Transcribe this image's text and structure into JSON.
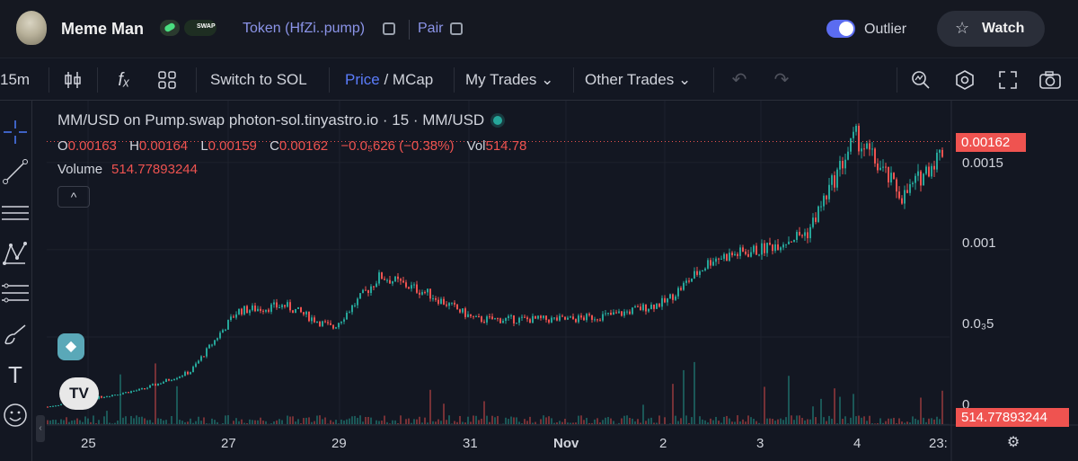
{
  "header": {
    "token_name": "Meme Man",
    "token_link": "Token (HfZi..pump)",
    "pair_link": "Pair",
    "pump_badge": "SWAP",
    "outlier_label": "Outlier",
    "outlier_enabled": true,
    "watch_label": "Watch",
    "accent_color": "#5b6cf0"
  },
  "toolbar": {
    "interval": "15m",
    "switch_label": "Switch to SOL",
    "price_label": "Price",
    "price_sep": " / ",
    "mcap_label": "MCap",
    "my_trades_label": "My Trades",
    "other_trades_label": "Other Trades",
    "icons": [
      "candles-icon",
      "fx-indicators-icon",
      "layouts-grid-icon",
      "undo-icon",
      "redo-icon",
      "magnifier-icon",
      "settings-hexagon-icon",
      "fullscreen-icon",
      "camera-icon"
    ]
  },
  "left_tools": [
    "crosshair-icon",
    "trendline-icon",
    "horizontal-lines-icon",
    "pattern-icon",
    "fib-icon",
    "brush-icon",
    "text-icon",
    "emoji-icon"
  ],
  "legend": {
    "title": "MM/USD on Pump.swap photon-sol.tinyastro.io · 15 · MM/USD",
    "ohlc": {
      "o_key": "O",
      "o": "0.00163",
      "h_key": "H",
      "h": "0.00164",
      "l_key": "L",
      "l": "0.00159",
      "c_key": "C",
      "c": "0.00162",
      "change": "−0.0₅626 (−0.38%)",
      "vol_key": "Vol",
      "vol": "514.78"
    },
    "volume_key": "Volume",
    "volume_value": "514.77893244",
    "collapse_glyph": "^"
  },
  "price_axis": {
    "ticks": [
      "0.0015",
      "0.001",
      "0.0₃5",
      "0"
    ],
    "last_price": "0.00162",
    "last_volume": "514.77893244"
  },
  "time_axis": {
    "ticks": [
      "25",
      "27",
      "29",
      "31",
      "Nov",
      "2",
      "3",
      "4",
      "23:"
    ]
  },
  "chart_data": {
    "type": "line",
    "title": "MM/USD on Pump.swap photon-sol.tinyastro.io · 15 · MM/USD",
    "xlabel": "",
    "ylabel": "",
    "x": [
      "Oct 24",
      "Oct 25",
      "Oct 26",
      "Oct 26.5",
      "Oct 27",
      "Oct 28",
      "Oct 28.7",
      "Oct 29",
      "Oct 29.5",
      "Oct 30",
      "Oct 31",
      "Nov 1",
      "Nov 2",
      "Nov 2.7",
      "Nov 3",
      "Nov 3.5",
      "Nov 3.8",
      "Nov 4",
      "Nov 4.5",
      "Nov 4.8"
    ],
    "series": [
      {
        "values": [
          0.0001,
          0.00015,
          0.0002,
          0.0003,
          0.00065,
          0.00068,
          0.00055,
          0.00085,
          0.00075,
          0.0006,
          0.0006,
          0.0006,
          0.00063,
          0.0007,
          0.00095,
          0.001,
          0.0011,
          0.00165,
          0.0013,
          0.00162
        ]
      }
    ],
    "ylim": [
      0,
      0.0017
    ],
    "grid": true,
    "up_color": "#26a69a",
    "down_color": "#ef5350"
  }
}
